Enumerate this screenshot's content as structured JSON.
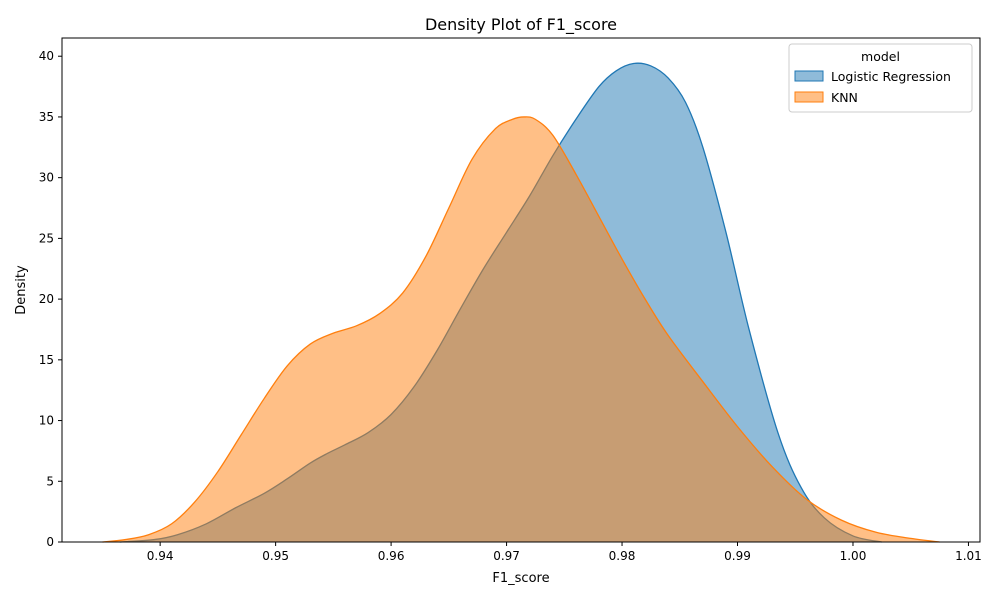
{
  "chart_data": {
    "type": "area",
    "title": "Density Plot of F1_score",
    "xlabel": "F1_score",
    "ylabel": "Density",
    "xlim": [
      0.9315,
      1.011
    ],
    "ylim": [
      0,
      41.5
    ],
    "xticks": [
      0.94,
      0.95,
      0.96,
      0.97,
      0.98,
      0.99,
      1.0,
      1.01
    ],
    "xtick_labels": [
      "0.94",
      "0.95",
      "0.96",
      "0.97",
      "0.98",
      "0.99",
      "1.00",
      "1.01"
    ],
    "yticks": [
      0,
      5,
      10,
      15,
      20,
      25,
      30,
      35,
      40
    ],
    "ytick_labels": [
      "0",
      "5",
      "10",
      "15",
      "20",
      "25",
      "30",
      "35",
      "40"
    ],
    "grid": false,
    "legend": {
      "title": "model",
      "placement": "top-right"
    },
    "series": [
      {
        "name": "Logistic Regression",
        "color": "#1f77b4",
        "fill_opacity": 0.5,
        "x": [
          0.9365,
          0.9395,
          0.9415,
          0.944,
          0.9465,
          0.949,
          0.951,
          0.953,
          0.9545,
          0.956,
          0.958,
          0.96,
          0.962,
          0.964,
          0.966,
          0.968,
          0.97,
          0.972,
          0.974,
          0.976,
          0.978,
          0.9795,
          0.981,
          0.9825,
          0.984,
          0.9855,
          0.987,
          0.989,
          0.991,
          0.9935,
          0.9955,
          0.9975,
          1.0,
          1.0025
        ],
        "y": [
          0.0,
          0.2,
          0.6,
          1.5,
          2.8,
          4.0,
          5.2,
          6.5,
          7.3,
          8.0,
          9.0,
          10.5,
          12.8,
          15.8,
          19.2,
          22.5,
          25.5,
          28.5,
          31.8,
          34.8,
          37.5,
          38.8,
          39.4,
          39.2,
          38.2,
          36.2,
          32.5,
          25.5,
          17.5,
          9.0,
          4.5,
          2.0,
          0.5,
          0.0
        ]
      },
      {
        "name": "KNN",
        "color": "#ff7f0e",
        "fill_opacity": 0.5,
        "x": [
          0.935,
          0.937,
          0.939,
          0.941,
          0.943,
          0.945,
          0.947,
          0.949,
          0.951,
          0.953,
          0.955,
          0.957,
          0.959,
          0.961,
          0.963,
          0.965,
          0.967,
          0.969,
          0.9705,
          0.9715,
          0.9725,
          0.974,
          0.976,
          0.978,
          0.98,
          0.982,
          0.984,
          0.987,
          0.99,
          0.993,
          0.996,
          0.999,
          1.002,
          1.005,
          1.0075
        ],
        "y": [
          0.0,
          0.2,
          0.6,
          1.5,
          3.3,
          5.8,
          8.8,
          11.8,
          14.5,
          16.3,
          17.2,
          17.8,
          18.8,
          20.5,
          23.5,
          27.5,
          31.5,
          34.0,
          34.8,
          35.0,
          34.8,
          33.5,
          30.3,
          26.8,
          23.3,
          20.0,
          17.0,
          13.2,
          9.5,
          6.2,
          3.5,
          1.8,
          0.8,
          0.3,
          0.0
        ]
      }
    ]
  }
}
